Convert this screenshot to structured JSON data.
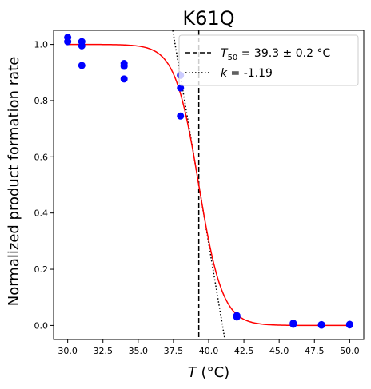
{
  "chart_data": {
    "type": "scatter",
    "title": "K61Q",
    "xlabel": {
      "var": "T",
      "unit": " (°C)"
    },
    "ylabel": "Normalized product formation rate",
    "xlim": [
      29.0,
      51.0
    ],
    "ylim": [
      -0.05,
      1.05
    ],
    "xticks": [
      30.0,
      32.5,
      35.0,
      37.5,
      40.0,
      42.5,
      45.0,
      47.5,
      50.0
    ],
    "xtick_labels": [
      "30.0",
      "32.5",
      "35.0",
      "37.5",
      "40.0",
      "42.5",
      "45.0",
      "47.5",
      "50.0"
    ],
    "yticks": [
      0.0,
      0.2,
      0.4,
      0.6,
      0.8,
      1.0
    ],
    "ytick_labels": [
      "0.0",
      "0.2",
      "0.4",
      "0.6",
      "0.8",
      "1.0"
    ],
    "grid": false,
    "legend_position": "top-right",
    "colors": {
      "points": "#0000ff",
      "fit": "#ff0000",
      "t50_line": "#000000",
      "slope_line": "#000000"
    },
    "points": [
      {
        "x": 30,
        "y": 1.025
      },
      {
        "x": 30,
        "y": 1.01
      },
      {
        "x": 31,
        "y": 1.01
      },
      {
        "x": 31,
        "y": 0.995
      },
      {
        "x": 31,
        "y": 0.925
      },
      {
        "x": 34,
        "y": 0.932
      },
      {
        "x": 34,
        "y": 0.922
      },
      {
        "x": 34,
        "y": 0.877
      },
      {
        "x": 38,
        "y": 0.89
      },
      {
        "x": 38,
        "y": 0.845
      },
      {
        "x": 38,
        "y": 0.745
      },
      {
        "x": 42,
        "y": 0.035
      },
      {
        "x": 42,
        "y": 0.03
      },
      {
        "x": 46,
        "y": 0.008
      },
      {
        "x": 46,
        "y": 0.004
      },
      {
        "x": 48,
        "y": 0.003
      },
      {
        "x": 48,
        "y": 0.001
      },
      {
        "x": 50,
        "y": 0.004
      },
      {
        "x": 50,
        "y": 0.002
      }
    ],
    "fit": {
      "type": "sigmoid",
      "t50": 39.3,
      "k": -1.19
    },
    "legend": [
      {
        "style": "dashed",
        "label_main": "T",
        "label_sub": "50",
        "label_rest": " = 39.3 ± 0.2 °C"
      },
      {
        "style": "dotted",
        "label_main": "k",
        "label_rest": " = -1.19"
      }
    ]
  }
}
